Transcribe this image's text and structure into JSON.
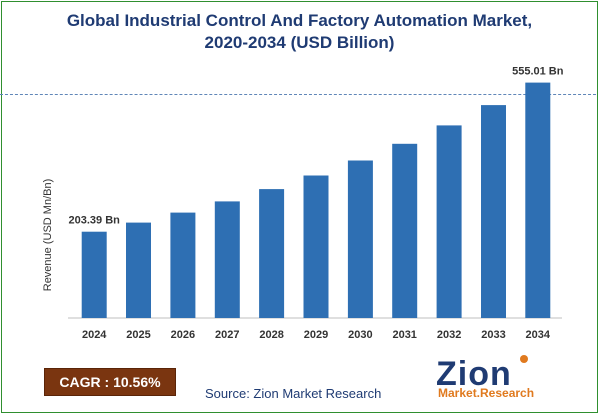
{
  "title": {
    "line1": "Global Industrial Control And Factory Automation Market,",
    "line2": "2020-2034 (USD Billion)"
  },
  "cagr": {
    "label": "CAGR : 10.56%"
  },
  "source": "Source: Zion Market Research",
  "logo": {
    "word": "Zion",
    "sub": "Market.Research"
  },
  "colors": {
    "bar": "#2e6fb3",
    "title": "#1f3b73",
    "cagr_bg": "#7a3510",
    "frame": "#2f8f2f"
  },
  "chart_data": {
    "type": "bar",
    "title": "Global Industrial Control And Factory Automation Market, 2020-2034 (USD Billion)",
    "xlabel": "",
    "ylabel": "Revenue (USD Mn/Bn)",
    "categories": [
      "2024",
      "2025",
      "2026",
      "2027",
      "2028",
      "2029",
      "2030",
      "2031",
      "2032",
      "2033",
      "2034"
    ],
    "values": [
      203.39,
      224.9,
      248.6,
      274.9,
      303.9,
      336.0,
      371.4,
      410.7,
      454.0,
      502.0,
      555.01
    ],
    "data_labels": {
      "first": "203.39 Bn",
      "last": "555.01 Bn"
    },
    "ylim": [
      0,
      580
    ],
    "grid": false,
    "legend": "none"
  }
}
